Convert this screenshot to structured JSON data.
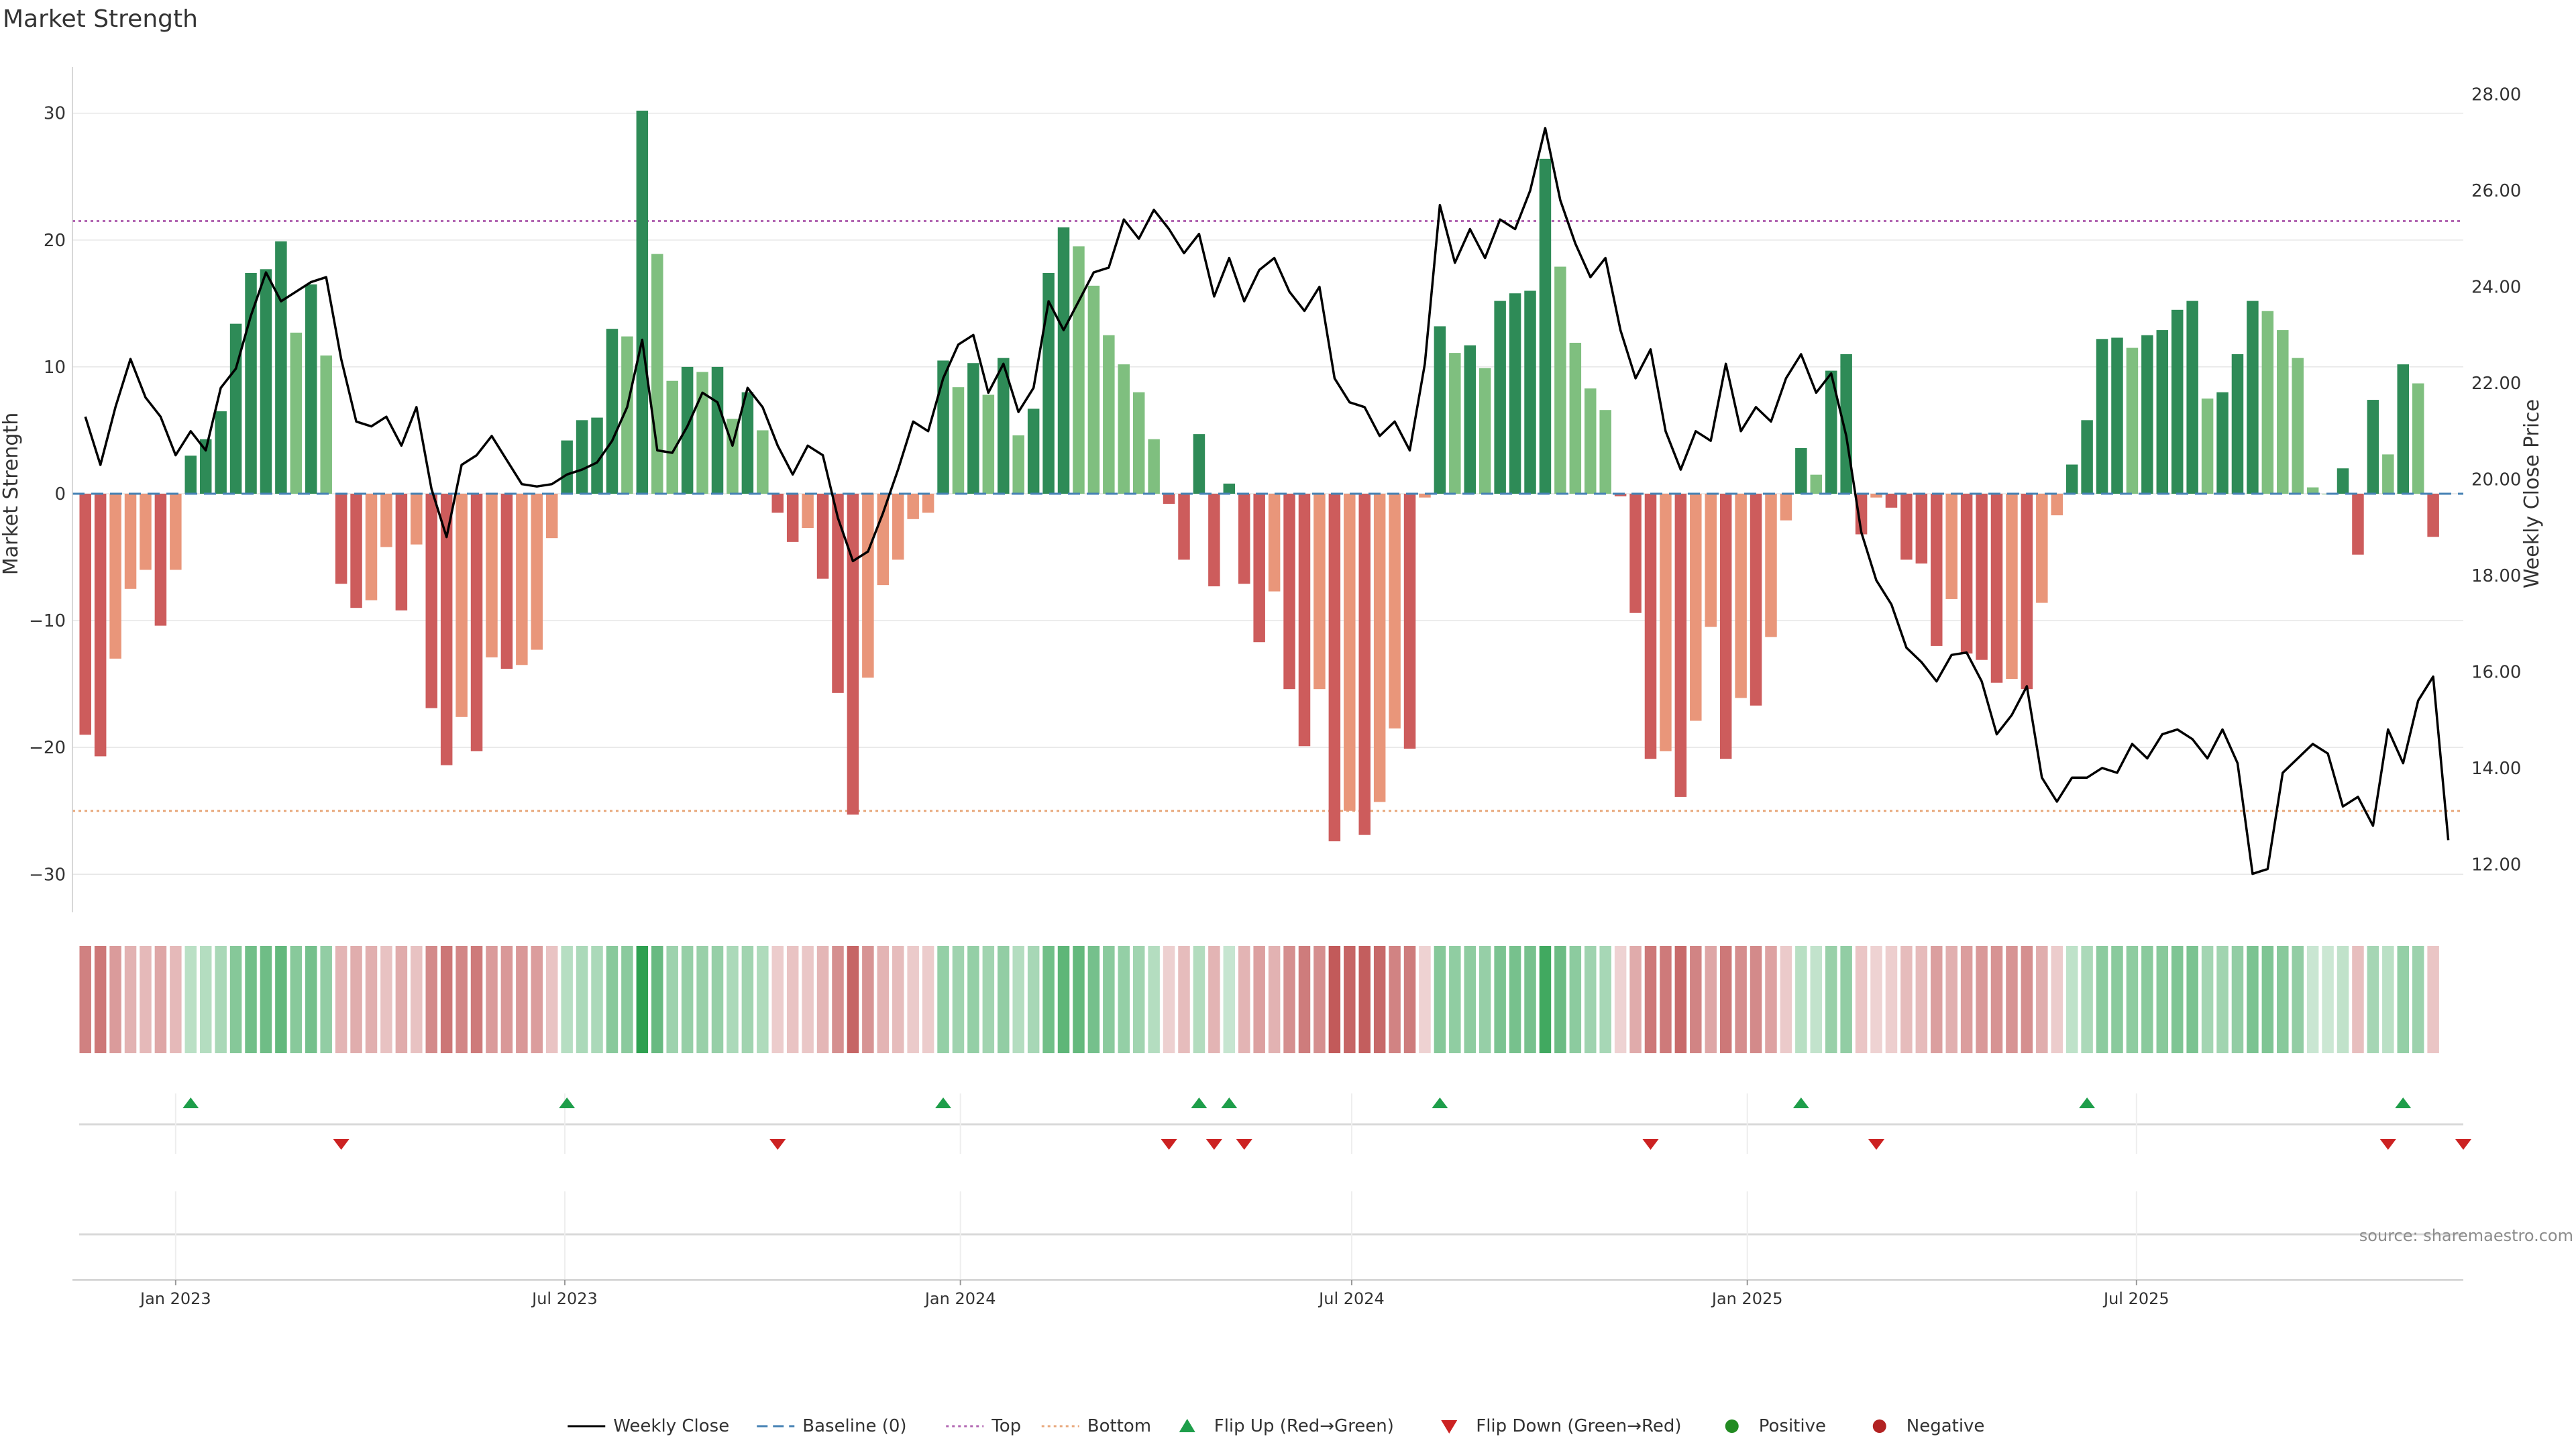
{
  "chart_data": {
    "type": "bar",
    "title": "Market Strength",
    "ylabel": "Market Strength",
    "y2label": "Weekly Close Price",
    "ylim": [
      -33,
      33
    ],
    "y2lim": [
      11.0,
      28.4
    ],
    "yticks": [
      30,
      20,
      10,
      0,
      -10,
      -20,
      -30
    ],
    "yticklabels": [
      "30",
      "20",
      "10",
      "0",
      "−10",
      "−20",
      "−30"
    ],
    "y2ticks": [
      28,
      26,
      24,
      22,
      20,
      18,
      16,
      14,
      12
    ],
    "y2ticklabels": [
      "28.00",
      "26.00",
      "24.00",
      "22.00",
      "20.00",
      "18.00",
      "16.00",
      "14.00",
      "12.00"
    ],
    "top_line": 21.5,
    "bottom_line": -25,
    "xlim": [
      "2022-11-14",
      "2025-11-30"
    ],
    "x_ticks": [
      {
        "date": "2023-01-01",
        "label": "Jan 2023"
      },
      {
        "date": "2023-07-01",
        "label": "Jul 2023"
      },
      {
        "date": "2024-01-01",
        "label": "Jan 2024"
      },
      {
        "date": "2024-07-01",
        "label": "Jul 2024"
      },
      {
        "date": "2025-01-01",
        "label": "Jan 2025"
      },
      {
        "date": "2025-07-01",
        "label": "Jul 2025"
      }
    ],
    "start_date": "2022-11-20",
    "week_interval_days": 7,
    "series": [
      {
        "name": "Market Strength",
        "values": [
          -19.0,
          -20.7,
          -13.0,
          -7.5,
          -6.0,
          -10.4,
          -6.0,
          3.0,
          4.3,
          6.5,
          13.4,
          17.4,
          17.7,
          19.9,
          12.7,
          16.5,
          10.9,
          -7.1,
          -9.0,
          -8.4,
          -4.2,
          -9.2,
          -4.0,
          -16.9,
          -21.4,
          -17.6,
          -20.3,
          -12.9,
          -13.8,
          -13.5,
          -12.3,
          -3.5,
          4.2,
          5.8,
          6.0,
          13.0,
          12.4,
          30.2,
          18.9,
          8.9,
          10.0,
          9.6,
          10.0,
          5.9,
          8.0,
          5.0,
          -1.5,
          -3.8,
          -2.7,
          -6.7,
          -15.7,
          -25.3,
          -14.5,
          -7.2,
          -5.2,
          -2.0,
          -1.5,
          10.5,
          8.4,
          10.3,
          7.8,
          10.7,
          4.6,
          6.7,
          17.4,
          21.0,
          19.5,
          16.4,
          12.5,
          10.2,
          8.0,
          4.3,
          -0.8,
          -5.2,
          4.7,
          -7.3,
          0.8,
          -7.1,
          -11.7,
          -7.7,
          -15.4,
          -19.9,
          -15.4,
          -27.4,
          -25.0,
          -26.9,
          -24.3,
          -18.5,
          -20.1,
          -0.3,
          13.2,
          11.1,
          11.7,
          9.9,
          15.2,
          15.8,
          16.0,
          26.4,
          17.9,
          11.9,
          8.3,
          6.6,
          -0.2,
          -9.4,
          -20.9,
          -20.3,
          -23.9,
          -17.9,
          -10.5,
          -20.9,
          -16.1,
          -16.7,
          -11.3,
          -2.1,
          3.6,
          1.5,
          9.7,
          11.0,
          -3.2,
          -0.3,
          -1.1,
          -5.2,
          -5.5,
          -12.0,
          -8.3,
          -12.6,
          -13.1,
          -14.9,
          -14.6,
          -15.4,
          -8.6,
          -1.7,
          2.3,
          5.8,
          12.2,
          12.3,
          11.5,
          12.5,
          12.9,
          14.5,
          15.2,
          7.5,
          8.0,
          11.0,
          15.2,
          14.4,
          12.9,
          10.7,
          0.5,
          0.0,
          2.0,
          -4.8,
          7.4,
          3.1,
          10.2,
          8.7,
          -3.4
        ]
      },
      {
        "name": "Weekly Close",
        "values": [
          21.3,
          20.3,
          21.5,
          22.5,
          21.7,
          21.3,
          20.5,
          21.0,
          20.6,
          21.9,
          22.3,
          23.4,
          24.3,
          23.7,
          23.9,
          24.1,
          24.2,
          22.5,
          21.2,
          21.1,
          21.3,
          20.7,
          21.5,
          19.8,
          18.8,
          20.3,
          20.5,
          20.9,
          20.4,
          19.9,
          19.85,
          19.9,
          20.1,
          20.2,
          20.35,
          20.8,
          21.5,
          22.9,
          20.6,
          20.55,
          21.1,
          21.8,
          21.6,
          20.7,
          21.9,
          21.5,
          20.7,
          20.1,
          20.7,
          20.5,
          19.2,
          18.3,
          18.5,
          19.3,
          20.2,
          21.2,
          21.0,
          22.1,
          22.8,
          23.0,
          21.8,
          22.4,
          21.4,
          21.9,
          23.7,
          23.1,
          23.7,
          24.3,
          24.4,
          25.4,
          25.0,
          25.6,
          25.2,
          24.7,
          25.1,
          23.8,
          24.6,
          23.7,
          24.35,
          24.6,
          23.9,
          23.5,
          24.0,
          22.1,
          21.6,
          21.5,
          20.9,
          21.2,
          20.6,
          22.4,
          25.7,
          24.5,
          25.2,
          24.6,
          25.4,
          25.2,
          26.0,
          27.3,
          25.8,
          24.9,
          24.2,
          24.6,
          23.1,
          22.1,
          22.7,
          21.0,
          20.2,
          21.0,
          20.8,
          22.4,
          21.0,
          21.5,
          21.2,
          22.1,
          22.6,
          21.8,
          22.2,
          20.9,
          18.9,
          17.9,
          17.4,
          16.5,
          16.2,
          15.8,
          16.35,
          16.4,
          15.8,
          14.7,
          15.1,
          15.7,
          13.8,
          13.3,
          13.8,
          13.8,
          14.0,
          13.9,
          14.5,
          14.2,
          14.7,
          14.8,
          14.6,
          14.2,
          14.8,
          14.1,
          11.8,
          11.9,
          13.9,
          14.2,
          14.5,
          14.3,
          13.2,
          13.4,
          12.8,
          14.8,
          14.1,
          15.4,
          15.9,
          12.5
        ]
      }
    ],
    "flip_up_weeks": [
      7,
      32,
      57,
      74,
      76,
      90,
      114,
      133,
      154
    ],
    "flip_down_weeks": [
      17,
      46,
      72,
      75,
      77,
      104,
      119,
      153,
      158
    ],
    "colors": {
      "strong_green": "#2e8b57",
      "light_green": "#7fbf7f",
      "strong_red": "#cd5c5c",
      "light_red": "#e9967a",
      "price_line": "#000000",
      "baseline": "#4682b4",
      "top": "#b266b2",
      "bottom": "#e8a87c",
      "flip_up": "#1e9e4a",
      "flip_down": "#cc2222",
      "positive": "#228b22",
      "negative": "#b22222"
    },
    "legend": {
      "placement": "bottom-center",
      "items": [
        {
          "label": "Weekly Close",
          "kind": "line-solid"
        },
        {
          "label": "Baseline (0)",
          "kind": "line-dashed"
        },
        {
          "label": "Top",
          "kind": "line-dotted-purple"
        },
        {
          "label": "Bottom",
          "kind": "line-dotted-orange"
        },
        {
          "label": "Flip Up (Red→Green)",
          "kind": "triangle-up"
        },
        {
          "label": "Flip Down (Green→Red)",
          "kind": "triangle-down"
        },
        {
          "label": "Positive",
          "kind": "dot-green"
        },
        {
          "label": "Negative",
          "kind": "dot-red"
        }
      ]
    },
    "source_text": "source: sharemaestro.com",
    "grid": true
  }
}
